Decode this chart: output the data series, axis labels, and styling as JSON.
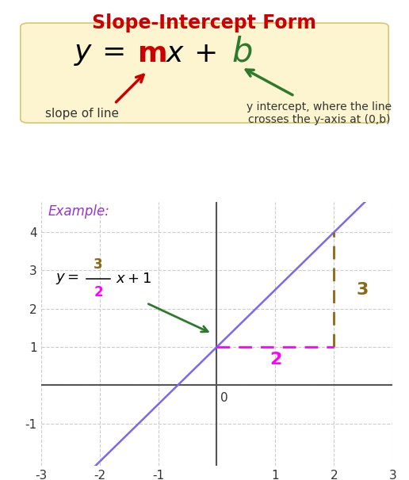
{
  "title": "Slope-Intercept Form",
  "title_color": "#cc0000",
  "bg_color": "#ffffff",
  "formula_box_color": "#fdf5d0",
  "formula_box_edgecolor": "#d4c870",
  "slope_color": "#cc0000",
  "b_color": "#2d7a2d",
  "text_color": "#333333",
  "example_label_color": "#9933cc",
  "line_color": "#7b68ee",
  "dashed_h_color": "#ff00ff",
  "dashed_v_color": "#8b6914",
  "rise_color": "#8b6914",
  "run_color": "#ff00ff",
  "arrow_slope_color": "#cc0000",
  "arrow_b_color": "#2d7a2d",
  "xlim": [
    -3,
    3
  ],
  "ylim": [
    -2.1,
    4.8
  ],
  "slope": 1.5,
  "intercept": 1.0,
  "x_ticks": [
    -3,
    -2,
    -1,
    0,
    1,
    2,
    3
  ],
  "y_ticks": [
    -1,
    0,
    1,
    2,
    3,
    4
  ]
}
